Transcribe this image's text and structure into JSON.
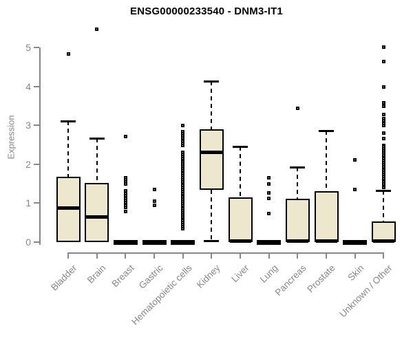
{
  "chart_data": {
    "type": "boxplot",
    "title": "ENSG00000233540 - DNM3-IT1",
    "ylabel": "Expression",
    "xlabel": "",
    "ylim": [
      0,
      5
    ],
    "yticks": [
      0,
      1,
      2,
      3,
      4,
      5
    ],
    "grid": false,
    "legend": false,
    "categories": [
      "Bladder",
      "Brain",
      "Breast",
      "Gastric",
      "Hematopoietic cells",
      "Kidney",
      "Liver",
      "Lung",
      "Pancreas",
      "Prostate",
      "Skin",
      "Unknown / Other"
    ],
    "boxes": [
      {
        "category": "Bladder",
        "q1": 0,
        "median": 0.87,
        "q3": 1.68,
        "whisker_low": 0,
        "whisker_high": 3.11,
        "outliers": [
          4.84
        ]
      },
      {
        "category": "Brain",
        "q1": 0,
        "median": 0.64,
        "q3": 1.52,
        "whisker_low": 0,
        "whisker_high": 2.67,
        "outliers": [
          5.46
        ]
      },
      {
        "category": "Breast",
        "q1": 0,
        "median": 0.02,
        "q3": 0.05,
        "whisker_low": 0,
        "whisker_high": 0.05,
        "outliers": [
          2.71,
          1.66,
          1.6,
          1.54,
          1.49,
          1.31,
          1.25,
          1.19,
          1.13,
          1.07,
          1.01,
          0.95,
          0.89,
          0.78
        ]
      },
      {
        "category": "Gastric",
        "q1": 0,
        "median": 0.02,
        "q3": 0.05,
        "whisker_low": 0,
        "whisker_high": 0.05,
        "outliers": [
          1.36,
          1.06,
          0.95
        ]
      },
      {
        "category": "Hematopoietic cells",
        "q1": 0,
        "median": 0.02,
        "q3": 0.05,
        "whisker_low": 0,
        "whisker_high": 0.05,
        "outliers": [
          3.0,
          2.83,
          2.78,
          2.73,
          2.68,
          2.63,
          2.58,
          2.53,
          2.48,
          2.3,
          2.25,
          2.2,
          2.15,
          2.1,
          2.05,
          2.0,
          1.95,
          1.9,
          1.85,
          1.8,
          1.75,
          1.7,
          1.65,
          1.6,
          1.55,
          1.5,
          1.45,
          1.4,
          1.35,
          1.3,
          1.25,
          1.2,
          1.15,
          1.1,
          1.05,
          1.0,
          0.95,
          0.9,
          0.85,
          0.8,
          0.75,
          0.7,
          0.65,
          0.6,
          0.55,
          0.5,
          0.45,
          0.4,
          0.35
        ]
      },
      {
        "category": "Kidney",
        "q1": 1.34,
        "median": 2.3,
        "q3": 2.9,
        "whisker_low": 0.04,
        "whisker_high": 4.13,
        "outliers": []
      },
      {
        "category": "Liver",
        "q1": 0,
        "median": 0.02,
        "q3": 1.15,
        "whisker_low": 0,
        "whisker_high": 2.46,
        "outliers": []
      },
      {
        "category": "Lung",
        "q1": 0,
        "median": 0.02,
        "q3": 0.05,
        "whisker_low": 0,
        "whisker_high": 0.05,
        "outliers": [
          1.66,
          1.49,
          1.27,
          1.13,
          0.73
        ]
      },
      {
        "category": "Pancreas",
        "q1": 0,
        "median": 0.02,
        "q3": 1.11,
        "whisker_low": 0,
        "whisker_high": 1.93,
        "outliers": [
          3.43
        ]
      },
      {
        "category": "Prostate",
        "q1": 0,
        "median": 0.02,
        "q3": 1.31,
        "whisker_low": 0,
        "whisker_high": 2.86,
        "outliers": []
      },
      {
        "category": "Skin",
        "q1": 0,
        "median": 0.02,
        "q3": 0.05,
        "whisker_low": 0,
        "whisker_high": 0.05,
        "outliers": [
          2.12,
          1.35
        ]
      },
      {
        "category": "Unknown / Other",
        "q1": 0,
        "median": 0.02,
        "q3": 0.53,
        "whisker_low": 0,
        "whisker_high": 1.33,
        "outliers": [
          5.01,
          4.64,
          3.98,
          3.58,
          3.49,
          3.27,
          3.17,
          3.11,
          3.05,
          2.99,
          2.8,
          2.66,
          2.49,
          2.44,
          2.39,
          2.34,
          2.29,
          2.24,
          2.19,
          2.14,
          2.09,
          2.04,
          1.99,
          1.94,
          1.89,
          1.84,
          1.79,
          1.74,
          1.69,
          1.64,
          1.59,
          1.54,
          1.49,
          1.44,
          1.4
        ]
      }
    ],
    "colors": {
      "box_fill": "#EDE8CD",
      "box_border": "#000000",
      "axis": "#878787",
      "tick_label": "#878787",
      "title": "#000000"
    }
  }
}
